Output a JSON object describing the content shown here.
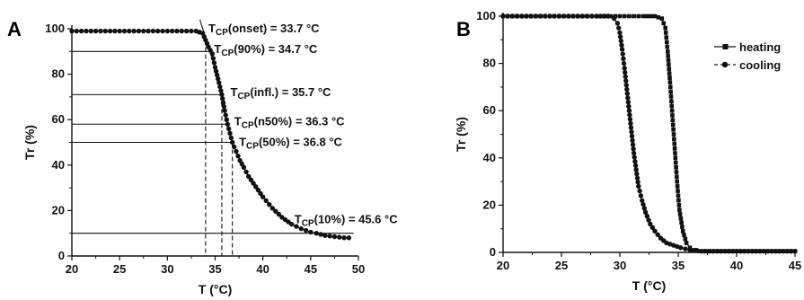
{
  "chart_data": [
    {
      "panel": "A",
      "type": "line",
      "xlabel": "T (°C)",
      "ylabel": "Tr (%)",
      "xlim": [
        20,
        50
      ],
      "ylim": [
        0,
        100
      ],
      "x_ticks": [
        20,
        25,
        30,
        35,
        40,
        45,
        50
      ],
      "y_ticks": [
        0,
        20,
        40,
        60,
        80,
        100
      ],
      "grid": false,
      "series": [
        {
          "style": "circle-markers",
          "x": [
            20,
            22,
            24,
            26,
            28,
            30,
            32,
            33,
            33.7,
            34.0,
            34.3,
            34.7,
            35.0,
            35.3,
            35.7,
            36.0,
            36.3,
            36.8,
            37.2,
            37.6,
            38.0,
            38.5,
            39.0,
            39.5,
            40.0,
            41.0,
            42.0,
            43.0,
            44.0,
            45.0,
            45.6,
            46.5,
            47.5,
            48.5,
            49.0
          ],
          "y": [
            99,
            99,
            99,
            99,
            99,
            99,
            99,
            99,
            98,
            95,
            92,
            89,
            83,
            78,
            71,
            64,
            58,
            50,
            46,
            42,
            39,
            35,
            32,
            29,
            26,
            21,
            17,
            14,
            12,
            10.5,
            10,
            9,
            8.5,
            8,
            8
          ]
        }
      ],
      "reference_lines": [
        {
          "y": 90,
          "x_end": 34.7
        },
        {
          "y": 71,
          "x_end": 35.7
        },
        {
          "y": 58,
          "x_end": 36.3
        },
        {
          "y": 50,
          "x_end": 36.8
        },
        {
          "y": 10,
          "x_end": 49.5
        }
      ],
      "vertical_dashed": [
        34.0,
        35.7,
        36.8
      ],
      "annotations": [
        {
          "main": "T",
          "sub": "CP",
          "rest": "(onset) = 33.7 °C",
          "x": 34.3,
          "y": 100
        },
        {
          "main": "T",
          "sub": "CP",
          "rest": "(90%) = 34.7 °C",
          "x": 34.9,
          "y": 91
        },
        {
          "main": "T",
          "sub": "CP",
          "rest": "(infl.) = 35.7 °C",
          "x": 36.6,
          "y": 72
        },
        {
          "main": "T",
          "sub": "CP",
          "rest": "(n50%) = 36.3 °C",
          "x": 37.0,
          "y": 59
        },
        {
          "main": "T",
          "sub": "CP",
          "rest": "(50%) = 36.8 °C",
          "x": 37.5,
          "y": 50
        },
        {
          "main": "T",
          "sub": "CP",
          "rest": "(10%) = 45.6 °C",
          "x": 43.3,
          "y": 16
        }
      ]
    },
    {
      "panel": "B",
      "type": "line",
      "xlabel": "T (°C)",
      "ylabel": "Tr (%)",
      "xlim": [
        20,
        45
      ],
      "ylim": [
        0,
        100
      ],
      "x_ticks": [
        20,
        25,
        30,
        35,
        40,
        45
      ],
      "y_ticks": [
        0,
        20,
        40,
        60,
        80,
        100
      ],
      "grid": false,
      "legend_position": "top-right",
      "series": [
        {
          "name": "heating",
          "marker": "square",
          "line": "solid",
          "x": [
            20,
            22,
            24,
            26,
            28,
            30,
            32,
            33,
            33.6,
            33.9,
            34.1,
            34.3,
            34.5,
            34.7,
            34.9,
            35.1,
            35.4,
            35.7,
            36.0,
            36.5,
            37,
            38,
            39,
            40,
            41,
            42,
            43,
            44,
            45
          ],
          "y": [
            100,
            100,
            100,
            100,
            100,
            100,
            100,
            100,
            99,
            95,
            85,
            72,
            58,
            44,
            30,
            18,
            9,
            4,
            2,
            1,
            0.5,
            0.5,
            0.5,
            0.5,
            0.5,
            0.5,
            0.5,
            0.5,
            0.5
          ]
        },
        {
          "name": "cooling",
          "marker": "circle",
          "line": "dashed",
          "x": [
            20,
            22,
            24,
            26,
            28,
            29,
            29.5,
            29.8,
            30.0,
            30.2,
            30.4,
            30.6,
            30.8,
            31.0,
            31.2,
            31.4,
            31.6,
            31.9,
            32.2,
            32.6,
            33.0,
            33.5,
            34.0,
            34.6,
            35.2,
            36,
            37,
            38,
            39,
            40,
            41,
            42,
            43,
            44,
            45
          ],
          "y": [
            100,
            100,
            100,
            100,
            100,
            100,
            99,
            97,
            93,
            86,
            78,
            69,
            60,
            51,
            42,
            35,
            28,
            22,
            17,
            12,
            9,
            6,
            4,
            3,
            2,
            1,
            0.5,
            0.5,
            0.5,
            0.5,
            0.5,
            0.5,
            0.5,
            0.5,
            0.5
          ]
        }
      ]
    }
  ]
}
